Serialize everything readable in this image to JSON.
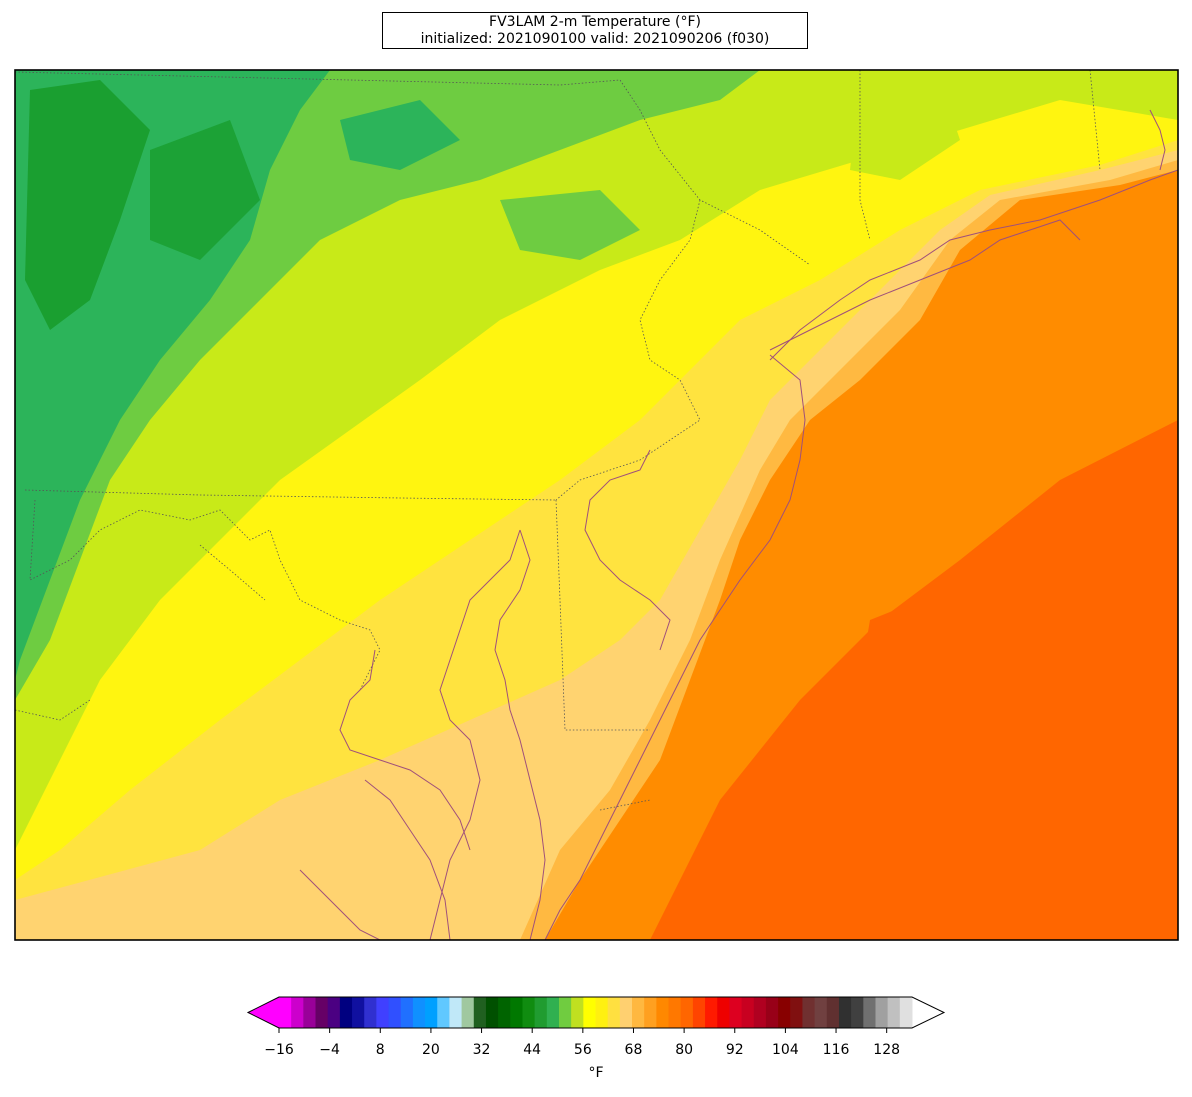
{
  "title": {
    "line1": "FV3LAM 2-m Temperature (°F)",
    "line2": "initialized: 2021090100 valid: 2021090206 (f030)"
  },
  "colorbar": {
    "unit": "°F",
    "min": -16,
    "max": 134,
    "ticks": [
      "−16",
      "−4",
      "8",
      "20",
      "32",
      "44",
      "56",
      "68",
      "80",
      "92",
      "104",
      "116",
      "128"
    ],
    "tick_values": [
      -16,
      -4,
      8,
      20,
      32,
      44,
      56,
      68,
      80,
      92,
      104,
      116,
      128
    ],
    "colors": [
      "#ff00ff",
      "#cc00cc",
      "#990099",
      "#660066",
      "#4b0082",
      "#000080",
      "#1010a0",
      "#3030d0",
      "#4040ff",
      "#3050ff",
      "#2070ff",
      "#1090ff",
      "#00a0ff",
      "#60c8ff",
      "#c0e8f8",
      "#a0c8a0",
      "#206020",
      "#005000",
      "#006400",
      "#007800",
      "#108c10",
      "#209c30",
      "#30b050",
      "#70cc40",
      "#c0e020",
      "#ffff00",
      "#fff010",
      "#ffe040",
      "#ffd070",
      "#ffb840",
      "#ffa020",
      "#ff8800",
      "#ff7800",
      "#ff6600",
      "#ff4400",
      "#ff1a00",
      "#ee0000",
      "#dd0020",
      "#c80020",
      "#b00020",
      "#980018",
      "#880000",
      "#801010",
      "#703030",
      "#704040",
      "#603030",
      "#303030",
      "#404040",
      "#707070",
      "#a0a0a0",
      "#c0c0c0",
      "#e0e0e0"
    ]
  },
  "map": {
    "region": "Mid-Atlantic",
    "palette": {
      "green_dark": "#008000",
      "green": "#2cb45a",
      "green_light": "#6ecc41",
      "yellow_green": "#c8ea18",
      "yellow": "#fff510",
      "yellow_pale": "#ffe33f",
      "tan": "#ffd370",
      "orange_light": "#ffb941",
      "orange": "#ff8c00",
      "orange_deep": "#ff6600",
      "border": "#555555",
      "coast": "#a0507a"
    }
  }
}
